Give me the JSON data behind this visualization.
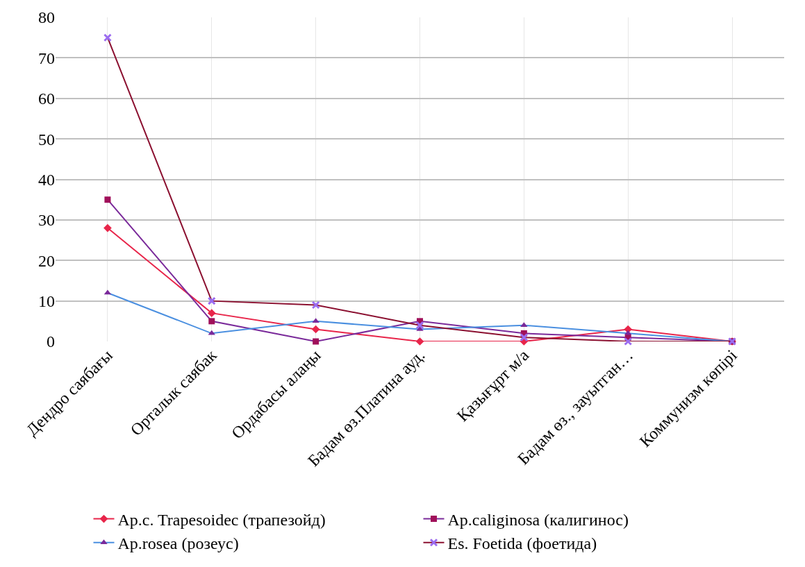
{
  "chart_data": {
    "type": "line",
    "categories": [
      "Дендро саябағы",
      "Орталык саябак",
      "Ордабасы алаңы",
      "Бадам өз.Платина ауд.",
      "Қазығұрт м/а",
      "Бадам өз., зауытган…",
      "Коммунизм көпірі"
    ],
    "series": [
      {
        "name": "Ap.c. Trapesoidec (трапезойд)",
        "color": "#e8254a",
        "marker": "diamond",
        "values": [
          28,
          7,
          3,
          0,
          0,
          3,
          0
        ]
      },
      {
        "name": "Ap.caliginosa (калигинос)",
        "color": "#7a2a9a",
        "colors": [
          "#a0105a",
          "#a0105a",
          "#a0105a",
          "#a0105a",
          "#a0105a",
          "#a0105a",
          "#a0105a"
        ],
        "marker": "square",
        "values": [
          35,
          5,
          0,
          5,
          2,
          1,
          0
        ]
      },
      {
        "name": "Ap.rosea (розеус)",
        "color": "#4a8fe0",
        "colors": [
          "#7a2a9a",
          "#7a2a9a",
          "#7a2a9a",
          "#7a2a9a",
          "#7a2a9a",
          "#7a2a9a",
          "#7a2a9a"
        ],
        "marker": "triangle",
        "values": [
          12,
          2,
          5,
          3,
          4,
          2,
          0
        ]
      },
      {
        "name": "Es. Foetida (фоетида)",
        "color": "#8b1030",
        "colors": [
          "#9b6cf0",
          "#9b6cf0",
          "#9b6cf0",
          "#9b6cf0",
          "#9b6cf0",
          "#9b6cf0",
          "#9b6cf0"
        ],
        "marker": "cross",
        "values": [
          75,
          10,
          9,
          4,
          1,
          0,
          0
        ]
      }
    ],
    "ylim": [
      0,
      80
    ],
    "yticks": [
      0,
      10,
      20,
      30,
      40,
      50,
      60,
      70,
      80
    ],
    "grid": true,
    "legend": "bottom",
    "line_style": "solid"
  }
}
